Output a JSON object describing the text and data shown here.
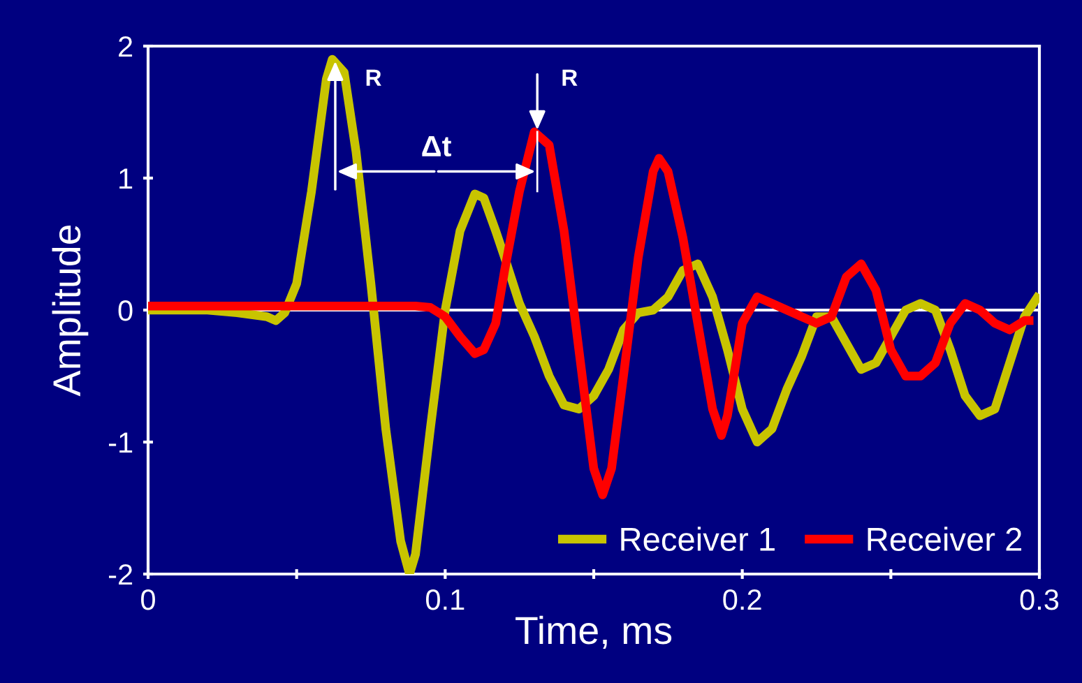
{
  "chart_data": {
    "type": "line",
    "xlabel": "Time, ms",
    "ylabel": "Amplitude",
    "xlim": [
      0,
      0.3
    ],
    "ylim": [
      -2,
      2
    ],
    "xticks": [
      0,
      {
        "value": 0.05,
        "label": null
      },
      0.1,
      {
        "value": 0.15,
        "label": null
      },
      0.2,
      {
        "value": 0.25,
        "label": null
      },
      0.3
    ],
    "yticks": [
      -2,
      -1,
      0,
      1,
      2
    ],
    "grid": false,
    "legend": "bottom right",
    "ref_lines": [
      {
        "axis": "y",
        "value": 0,
        "label": null,
        "color": "#ffffff"
      }
    ],
    "annotations": [
      {
        "text": "R",
        "x": 0.063,
        "y": 1.9
      },
      {
        "text": "R",
        "x": 0.131,
        "y": 1.35
      },
      "Δt"
    ],
    "series": [
      {
        "name": "Receiver 1",
        "color": "#c8c400",
        "x": [
          0,
          0.02,
          0.03,
          0.04,
          0.043,
          0.046,
          0.05,
          0.055,
          0.06,
          0.062,
          0.066,
          0.07,
          0.075,
          0.08,
          0.085,
          0.088,
          0.09,
          0.095,
          0.1,
          0.105,
          0.11,
          0.113,
          0.117,
          0.12,
          0.125,
          0.13,
          0.135,
          0.14,
          0.145,
          0.15,
          0.155,
          0.16,
          0.165,
          0.17,
          0.175,
          0.18,
          0.185,
          0.19,
          0.195,
          0.2,
          0.205,
          0.21,
          0.215,
          0.22,
          0.225,
          0.23,
          0.235,
          0.24,
          0.245,
          0.25,
          0.255,
          0.26,
          0.265,
          0.27,
          0.275,
          0.28,
          0.285,
          0.29,
          0.295,
          0.3
        ],
        "values": [
          0,
          0,
          -0.02,
          -0.05,
          -0.08,
          -0.02,
          0.2,
          0.9,
          1.75,
          1.9,
          1.8,
          1.2,
          0.2,
          -0.9,
          -1.75,
          -2.0,
          -1.85,
          -0.9,
          0.0,
          0.6,
          0.88,
          0.85,
          0.6,
          0.4,
          0.05,
          -0.2,
          -0.5,
          -0.72,
          -0.75,
          -0.65,
          -0.45,
          -0.15,
          -0.02,
          0.0,
          0.1,
          0.3,
          0.35,
          0.1,
          -0.3,
          -0.75,
          -1.0,
          -0.9,
          -0.6,
          -0.35,
          -0.05,
          -0.05,
          -0.25,
          -0.45,
          -0.4,
          -0.2,
          0.0,
          0.05,
          0.0,
          -0.3,
          -0.65,
          -0.8,
          -0.75,
          -0.4,
          -0.05,
          0.12
        ]
      },
      {
        "name": "Receiver 2",
        "color": "#ff0000",
        "x": [
          0,
          0.04,
          0.08,
          0.09,
          0.095,
          0.1,
          0.105,
          0.11,
          0.113,
          0.117,
          0.12,
          0.125,
          0.13,
          0.135,
          0.14,
          0.145,
          0.15,
          0.153,
          0.156,
          0.16,
          0.165,
          0.17,
          0.172,
          0.175,
          0.18,
          0.185,
          0.19,
          0.193,
          0.195,
          0.2,
          0.205,
          0.21,
          0.22,
          0.225,
          0.23,
          0.235,
          0.24,
          0.245,
          0.25,
          0.255,
          0.26,
          0.265,
          0.27,
          0.275,
          0.28,
          0.285,
          0.29,
          0.295,
          0.298
        ],
        "values": [
          0.03,
          0.03,
          0.03,
          0.03,
          0.02,
          -0.05,
          -0.2,
          -0.33,
          -0.3,
          -0.1,
          0.3,
          0.9,
          1.35,
          1.25,
          0.6,
          -0.3,
          -1.2,
          -1.4,
          -1.2,
          -0.5,
          0.4,
          1.05,
          1.15,
          1.05,
          0.55,
          -0.1,
          -0.75,
          -0.95,
          -0.8,
          -0.1,
          0.1,
          0.05,
          -0.05,
          -0.1,
          -0.05,
          0.25,
          0.35,
          0.15,
          -0.3,
          -0.5,
          -0.5,
          -0.4,
          -0.1,
          0.05,
          0.0,
          -0.1,
          -0.15,
          -0.08,
          -0.08
        ]
      }
    ]
  }
}
